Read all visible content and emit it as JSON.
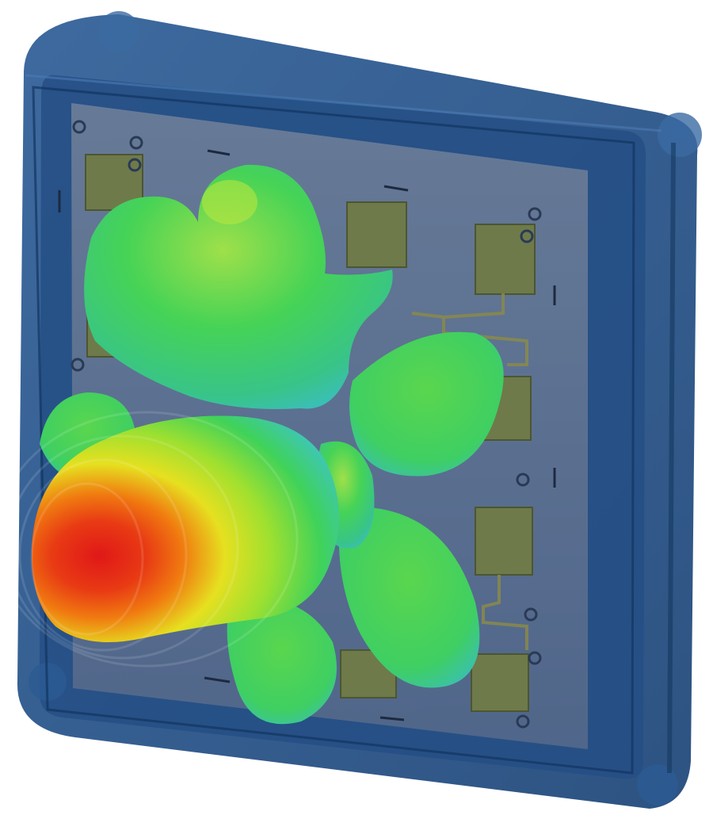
{
  "scene": {
    "subject": "radiation-pattern-over-patch-antenna-array",
    "colors": {
      "background": "#ffffff",
      "enclosure": "#1f4f86",
      "enclosure_dark": "#163b68",
      "board": "#5b6f8d",
      "patch": "#6e7a4a",
      "trace": "#8a8a4a",
      "lobe_green": "#3fd25a",
      "lobe_cyan": "#3fc7b0",
      "lobe_yellow": "#e6e020",
      "lobe_orange": "#f07a10",
      "lobe_red": "#e01818"
    },
    "icons": {
      "enclosure": "transparent-housing",
      "board": "pcb-board",
      "pattern": "3d-radiation-pattern"
    }
  }
}
